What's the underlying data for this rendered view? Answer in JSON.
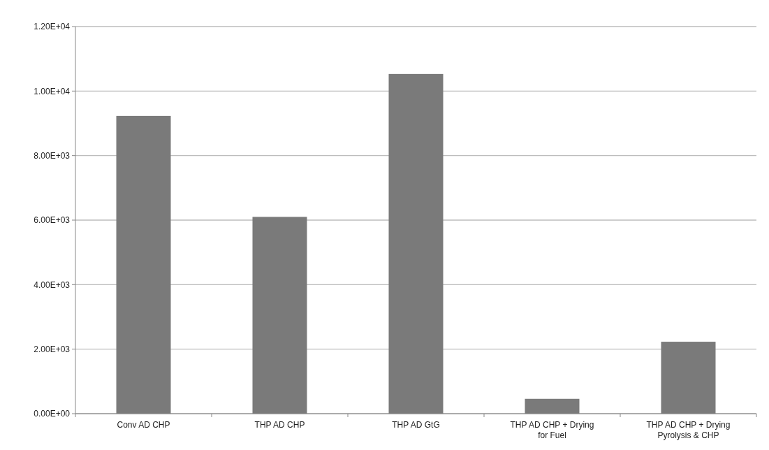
{
  "chart_data": {
    "type": "bar",
    "categories": [
      "Conv AD CHP",
      "THP AD CHP",
      "THP AD GtG",
      "THP AD CHP + Drying for Fuel",
      "THP AD CHP + Drying Pyrolysis & CHP"
    ],
    "values": [
      9230,
      6100,
      10530,
      460,
      2230
    ],
    "color": "#7a7a7a",
    "ylim": [
      0,
      12000
    ],
    "yticks": [
      {
        "value": 0,
        "label": "0.00E+00"
      },
      {
        "value": 2000,
        "label": "2.00E+03"
      },
      {
        "value": 4000,
        "label": "4.00E+03"
      },
      {
        "value": 6000,
        "label": "6.00E+03"
      },
      {
        "value": 8000,
        "label": "8.00E+03"
      },
      {
        "value": 10000,
        "label": "1.00E+04"
      },
      {
        "value": 12000,
        "label": "1.20E+04"
      }
    ],
    "grid": "y"
  }
}
